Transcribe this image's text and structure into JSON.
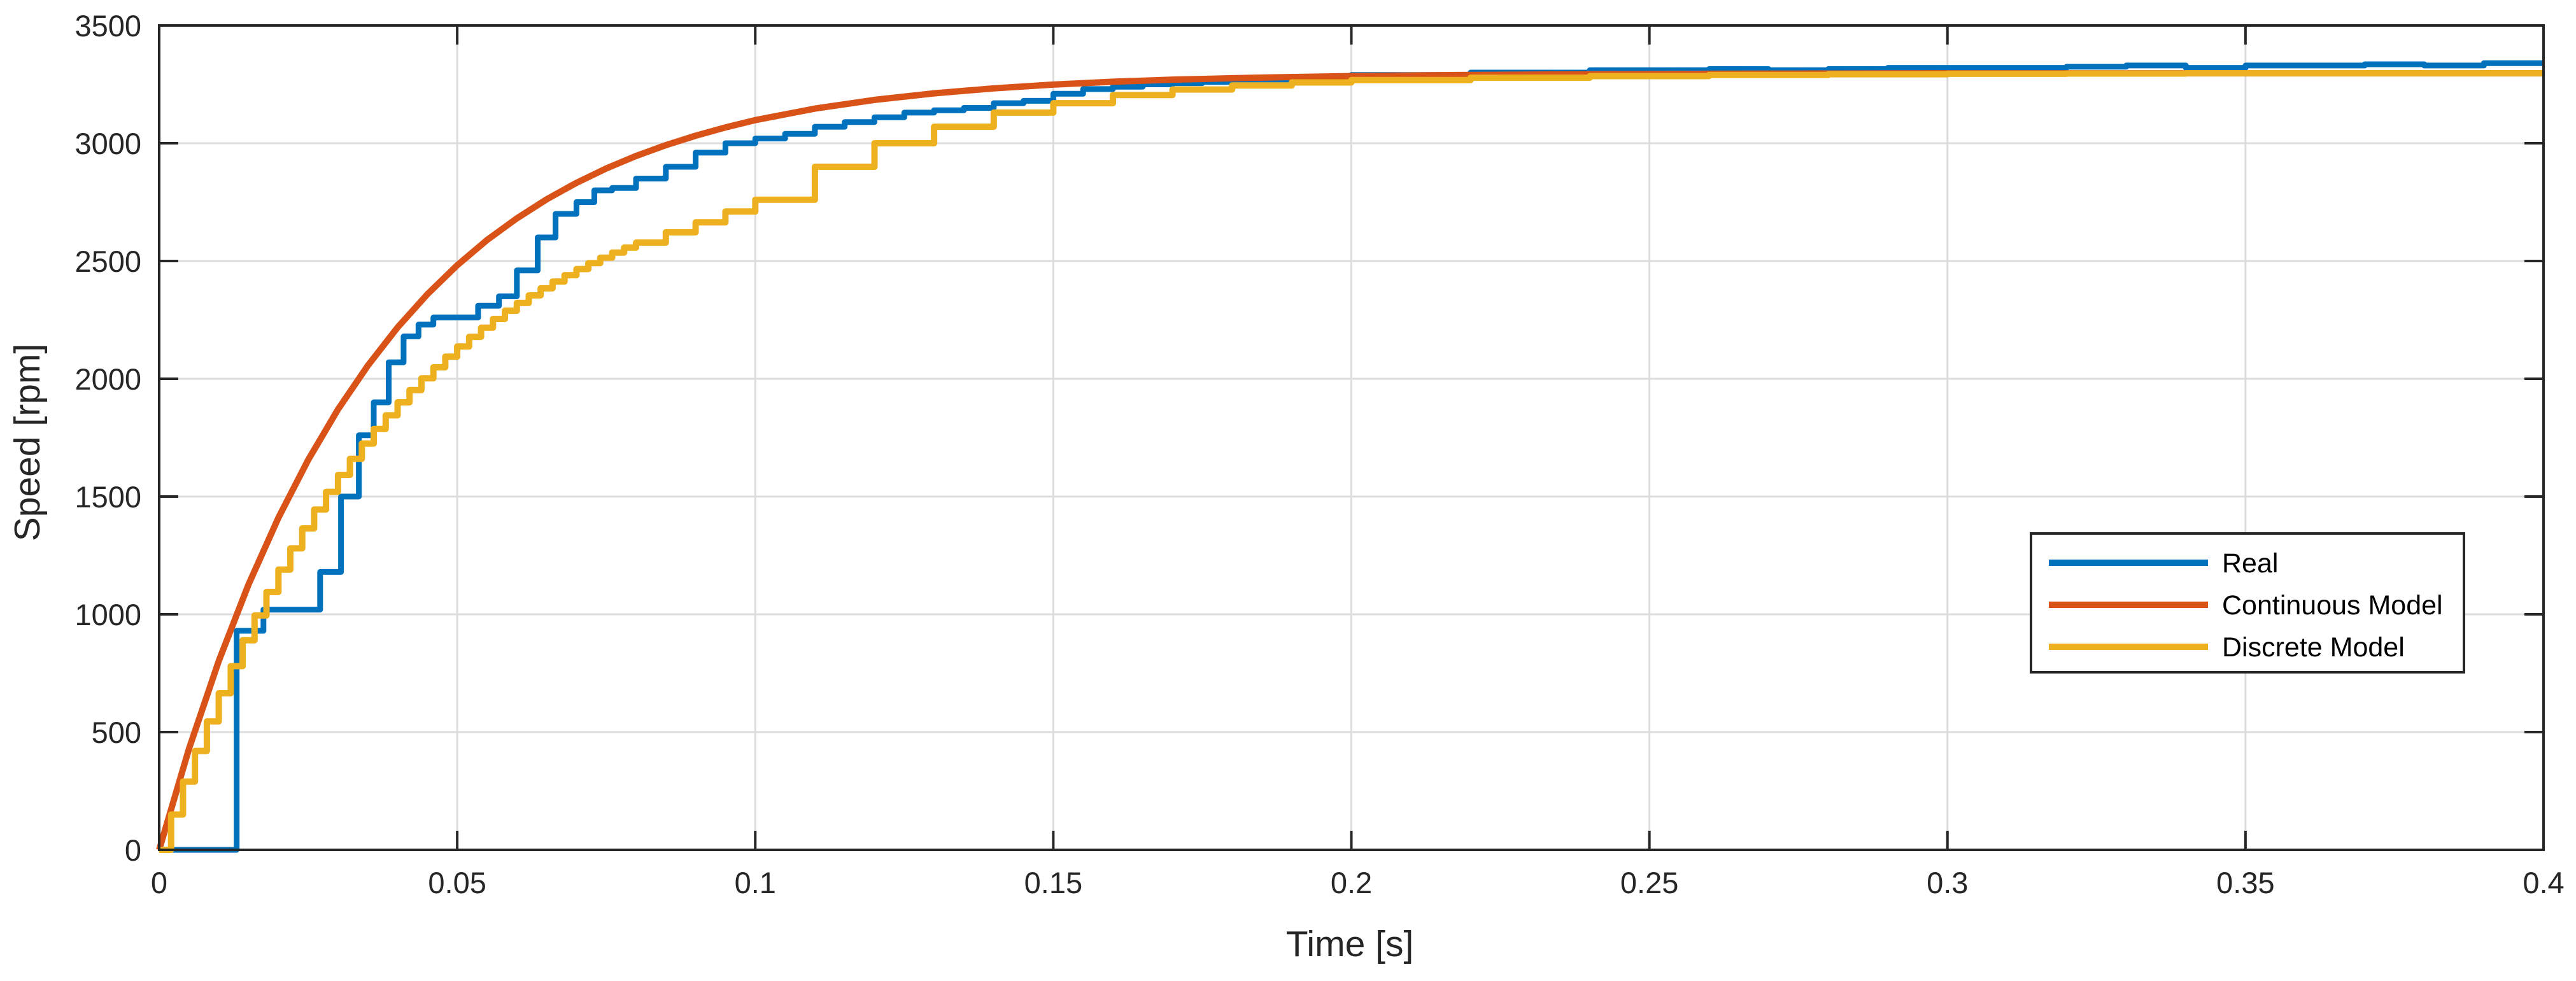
{
  "chart_data": {
    "type": "line",
    "title": "",
    "xlabel": "Time [s]",
    "ylabel": "Speed [rpm]",
    "xlim": [
      0,
      0.4
    ],
    "ylim": [
      0,
      3500
    ],
    "xticks": [
      0,
      0.05,
      0.1,
      0.15,
      0.2,
      0.25,
      0.3,
      0.35,
      0.4
    ],
    "xtick_labels": [
      "0",
      "0.05",
      "0.1",
      "0.15",
      "0.2",
      "0.25",
      "0.3",
      "0.35",
      "0.4"
    ],
    "yticks": [
      0,
      500,
      1000,
      1500,
      2000,
      2500,
      3000,
      3500
    ],
    "ytick_labels": [
      "0",
      "500",
      "1000",
      "1500",
      "2000",
      "2500",
      "3000",
      "3500"
    ],
    "grid": true,
    "legend_position": "right",
    "series": [
      {
        "name": "Real",
        "color": "#0072BD",
        "style": "step",
        "x": [
          0,
          0.013,
          0.013,
          0.0175,
          0.027,
          0.0305,
          0.0335,
          0.036,
          0.0385,
          0.041,
          0.0435,
          0.046,
          0.05,
          0.0535,
          0.057,
          0.06,
          0.0635,
          0.0665,
          0.07,
          0.073,
          0.076,
          0.08,
          0.085,
          0.09,
          0.095,
          0.1,
          0.105,
          0.11,
          0.115,
          0.12,
          0.125,
          0.13,
          0.135,
          0.14,
          0.145,
          0.15,
          0.155,
          0.16,
          0.165,
          0.17,
          0.175,
          0.18,
          0.19,
          0.2,
          0.21,
          0.22,
          0.23,
          0.24,
          0.25,
          0.26,
          0.27,
          0.28,
          0.29,
          0.3,
          0.31,
          0.32,
          0.33,
          0.34,
          0.35,
          0.36,
          0.37,
          0.38,
          0.39,
          0.4
        ],
        "y": [
          0,
          0,
          930,
          1020,
          1180,
          1500,
          1760,
          1900,
          2070,
          2180,
          2230,
          2260,
          2260,
          2310,
          2350,
          2460,
          2600,
          2700,
          2750,
          2800,
          2810,
          2850,
          2900,
          2960,
          3000,
          3020,
          3040,
          3070,
          3090,
          3110,
          3130,
          3140,
          3150,
          3170,
          3180,
          3210,
          3230,
          3240,
          3250,
          3255,
          3260,
          3270,
          3280,
          3290,
          3290,
          3300,
          3300,
          3310,
          3310,
          3315,
          3310,
          3315,
          3320,
          3320,
          3320,
          3325,
          3330,
          3320,
          3330,
          3330,
          3335,
          3330,
          3340,
          3340
        ]
      },
      {
        "name": "Continuous Model",
        "color": "#D95319",
        "style": "line",
        "x": [
          0,
          0.005,
          0.01,
          0.015,
          0.02,
          0.025,
          0.03,
          0.035,
          0.04,
          0.045,
          0.05,
          0.055,
          0.06,
          0.065,
          0.07,
          0.075,
          0.08,
          0.085,
          0.09,
          0.095,
          0.1,
          0.11,
          0.12,
          0.13,
          0.14,
          0.15,
          0.16,
          0.17,
          0.18,
          0.19,
          0.2,
          0.22,
          0.24,
          0.26,
          0.28,
          0.3,
          0.32,
          0.34,
          0.36,
          0.38,
          0.4
        ],
        "y": [
          0,
          429,
          802,
          1127,
          1410,
          1656,
          1870,
          2056,
          2218,
          2359,
          2482,
          2589,
          2681,
          2762,
          2832,
          2893,
          2946,
          2992,
          3032,
          3067,
          3098,
          3147,
          3184,
          3212,
          3233,
          3249,
          3261,
          3270,
          3276,
          3281,
          3285,
          3290,
          3293,
          3295,
          3296,
          3297,
          3297,
          3297,
          3297,
          3297,
          3297
        ]
      },
      {
        "name": "Discrete Model",
        "color": "#EDB120",
        "style": "step",
        "x": [
          0,
          0.002,
          0.004,
          0.006,
          0.008,
          0.01,
          0.012,
          0.014,
          0.016,
          0.018,
          0.02,
          0.022,
          0.024,
          0.026,
          0.028,
          0.03,
          0.032,
          0.034,
          0.036,
          0.038,
          0.04,
          0.042,
          0.044,
          0.046,
          0.048,
          0.05,
          0.052,
          0.054,
          0.056,
          0.058,
          0.06,
          0.062,
          0.064,
          0.066,
          0.068,
          0.07,
          0.072,
          0.074,
          0.076,
          0.078,
          0.08,
          0.085,
          0.09,
          0.095,
          0.1,
          0.11,
          0.12,
          0.13,
          0.14,
          0.15,
          0.16,
          0.17,
          0.18,
          0.19,
          0.2,
          0.22,
          0.24,
          0.26,
          0.28,
          0.3,
          0.32,
          0.34,
          0.36,
          0.38,
          0.4
        ],
        "y": [
          0,
          150,
          290,
          420,
          545,
          665,
          780,
          890,
          995,
          1095,
          1190,
          1280,
          1365,
          1445,
          1520,
          1592,
          1660,
          1725,
          1787,
          1845,
          1900,
          1952,
          2002,
          2049,
          2094,
          2137,
          2178,
          2217,
          2254,
          2289,
          2322,
          2354,
          2384,
          2413,
          2440,
          2466,
          2491,
          2514,
          2536,
          2557,
          2578,
          2622,
          2664,
          2710,
          2760,
          2900,
          3000,
          3070,
          3130,
          3170,
          3205,
          3228,
          3245,
          3258,
          3268,
          3278,
          3285,
          3290,
          3293,
          3295,
          3296,
          3297,
          3297,
          3297,
          3297
        ]
      }
    ]
  }
}
